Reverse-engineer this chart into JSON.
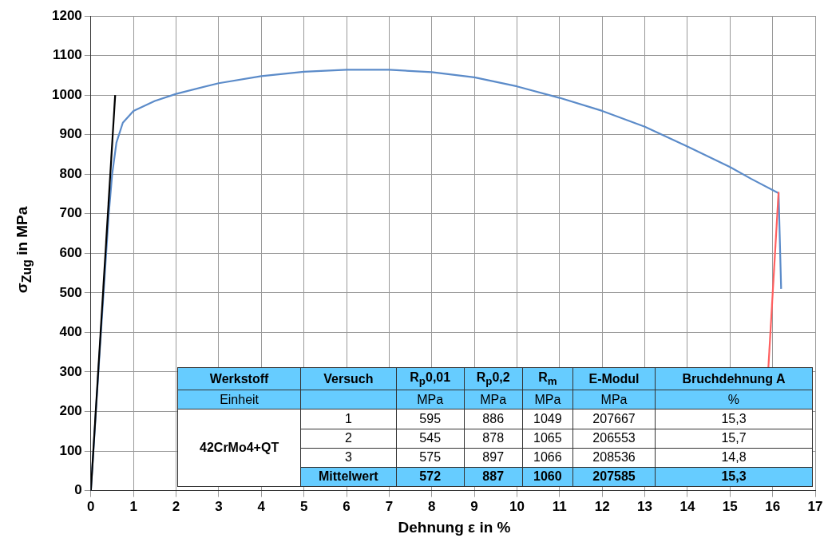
{
  "chart_data": {
    "type": "line",
    "xlabel": "Dehnung ε in %",
    "ylabel": "σ$_{Zug}$ in MPa",
    "xlim": [
      0,
      17
    ],
    "xticks": [
      0,
      1,
      2,
      3,
      4,
      5,
      6,
      7,
      8,
      9,
      10,
      11,
      12,
      13,
      14,
      15,
      16,
      17
    ],
    "ylim": [
      0,
      1200
    ],
    "yticks": [
      0,
      100,
      200,
      300,
      400,
      500,
      600,
      700,
      800,
      900,
      1000,
      1100,
      1200
    ],
    "grid": true,
    "legend": false,
    "marker": "none",
    "line_style": "solid",
    "series": [
      {
        "color": "#000000",
        "x": [
          0,
          0.57
        ],
        "values": [
          0,
          1000
        ]
      },
      {
        "color": "#ff6060",
        "x": [
          15.9,
          16.14
        ],
        "values": [
          310,
          755
        ]
      },
      {
        "color": "#5b8bc9",
        "x": [
          0,
          0.2,
          0.42,
          0.5,
          0.6,
          0.75,
          1,
          1.5,
          2,
          3,
          4,
          5,
          6,
          7,
          8,
          9,
          10,
          11,
          12,
          13,
          14,
          15,
          15.5,
          16.14,
          16.2
        ],
        "values": [
          0,
          340,
          700,
          800,
          880,
          930,
          960,
          985,
          1003,
          1030,
          1048,
          1059,
          1064,
          1064,
          1058,
          1045,
          1022,
          993,
          960,
          920,
          870,
          818,
          788,
          752,
          510
        ]
      }
    ],
    "annotations": [
      "Werkstoff",
      "Versuch",
      "R$_{p}$0,01",
      "R$_{p}$0,2",
      "R$_{m}$",
      "E-Modul",
      "Bruchdehnung A",
      "Einheit",
      "MPa",
      "MPa",
      "MPa",
      "MPa",
      "%",
      "42CrMo4+QT",
      "1",
      "595",
      "886",
      "1049",
      "207667",
      "15,3",
      "2",
      "545",
      "878",
      "1065",
      "206553",
      "15,7",
      "3",
      "575",
      "897",
      "1066",
      "208536",
      "14,8",
      "Mittelwert",
      "572",
      "887",
      "1060",
      "207585",
      "15,3"
    ]
  }
}
